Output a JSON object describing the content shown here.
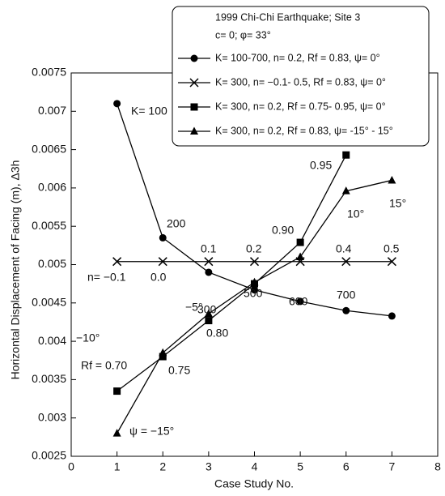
{
  "chart_data": {
    "type": "line",
    "x_label": "Case Study No.",
    "y_label": "Horizontal Displacement of Facing (m), Δ3h",
    "xlim": [
      0,
      8
    ],
    "xticks": [
      0,
      1,
      2,
      3,
      4,
      5,
      6,
      7,
      8
    ],
    "ylim": [
      0.0025,
      0.0075
    ],
    "yticks": [
      0.0025,
      0.003,
      0.0035,
      0.004,
      0.0045,
      0.005,
      0.0055,
      0.006,
      0.0065,
      0.007,
      0.0075
    ],
    "legend_title": [
      "1999 Chi-Chi Earthquake; Site 3",
      "c= 0; φ= 33°"
    ],
    "series": [
      {
        "name": "K= 100-700, n= 0.2, Rf = 0.83, ψ= 0°",
        "color": "#000000",
        "marker": "circle",
        "x": [
          1,
          2,
          3,
          4,
          5,
          6,
          7
        ],
        "values": [
          0.0071,
          0.00535,
          0.0049,
          0.00467,
          0.00452,
          0.0044,
          0.00433
        ]
      },
      {
        "name": "K= 300, n= −0.1- 0.5, Rf = 0.83, ψ= 0°",
        "color": "#000000",
        "marker": "x",
        "x": [
          1,
          2,
          3,
          4,
          5,
          6,
          7
        ],
        "values": [
          0.00504,
          0.00504,
          0.00504,
          0.00504,
          0.00504,
          0.00504,
          0.00504
        ]
      },
      {
        "name": "K= 300, n= 0.2, Rf = 0.75- 0.95, ψ= 0°",
        "color": "#000000",
        "marker": "square",
        "x": [
          1,
          2,
          3,
          4,
          5,
          6
        ],
        "values": [
          0.00335,
          0.0038,
          0.00427,
          0.00475,
          0.00529,
          0.00643
        ]
      },
      {
        "name": "K= 300, n= 0.2, Rf = 0.83, ψ= -15° - 15°",
        "color": "#000000",
        "marker": "triangle",
        "x": [
          1,
          2,
          3,
          4,
          5,
          6,
          7
        ],
        "values": [
          0.0028,
          0.00385,
          0.00436,
          0.00477,
          0.0051,
          0.00596,
          0.0061
        ]
      }
    ],
    "annotations": [
      "K= 100",
      "200",
      "300",
      "500",
      "600",
      "700",
      "n= −0.1",
      "0.0",
      "0.1",
      "0.2",
      "0.4",
      "0.5",
      "Rf = 0.70",
      "0.75",
      "0.80",
      "0.90",
      "0.95",
      "ψ = −15°",
      "−10°",
      "−5°",
      "10°",
      "15°"
    ]
  }
}
